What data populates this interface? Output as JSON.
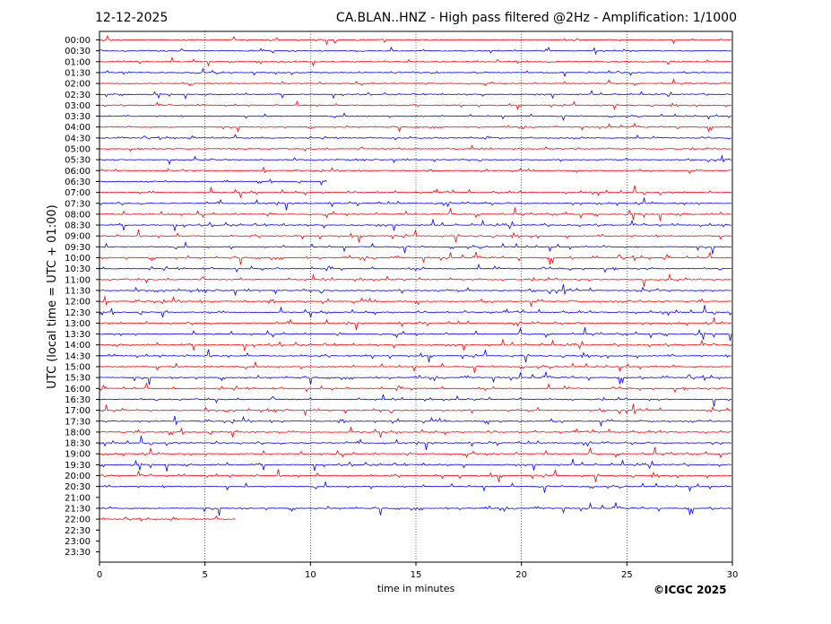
{
  "header": {
    "date": "12-12-2025",
    "title": "CA.BLAN..HNZ - High pass filtered @2Hz - Amplification: 1/1000"
  },
  "footer": {
    "copyright": "©ICGC 2025"
  },
  "colors": {
    "trace_a": "#ff0000",
    "trace_b": "#0000ff",
    "grid": "#000000"
  },
  "chart_data": {
    "type": "line",
    "title": "CA.BLAN..HNZ - High pass filtered @2Hz - Amplification: 1/1000",
    "xlabel": "time in minutes",
    "ylabel": "UTC (local time = UTC + 01:00)",
    "xlim": [
      0,
      30
    ],
    "x_ticks": [
      0,
      5,
      10,
      15,
      20,
      25,
      30
    ],
    "x_tick_labels": [
      "0",
      "5",
      "10",
      "15",
      "20",
      "25",
      "30"
    ],
    "rows": [
      "00:00",
      "00:30",
      "01:00",
      "01:30",
      "02:00",
      "02:30",
      "03:00",
      "03:30",
      "04:00",
      "04:30",
      "05:00",
      "05:30",
      "06:00",
      "06:30",
      "07:00",
      "07:30",
      "08:00",
      "08:30",
      "09:00",
      "09:30",
      "10:00",
      "10:30",
      "11:00",
      "11:30",
      "12:00",
      "12:30",
      "13:00",
      "13:30",
      "14:00",
      "14:30",
      "15:00",
      "15:30",
      "16:00",
      "16:30",
      "17:00",
      "17:30",
      "18:00",
      "18:30",
      "19:00",
      "19:30",
      "20:00",
      "20:30",
      "21:00",
      "21:30",
      "22:00",
      "22:30",
      "23:00",
      "23:30"
    ],
    "row_colors": [
      "red",
      "blue",
      "red",
      "blue",
      "red",
      "blue",
      "red",
      "blue",
      "red",
      "blue",
      "red",
      "blue",
      "red",
      "blue",
      "red",
      "blue",
      "red",
      "blue",
      "red",
      "blue",
      "red",
      "blue",
      "red",
      "blue",
      "red",
      "blue",
      "red",
      "blue",
      "red",
      "blue",
      "red",
      "blue",
      "red",
      "blue",
      "red",
      "blue",
      "red",
      "blue",
      "red",
      "blue",
      "red",
      "blue",
      "red",
      "blue",
      "red",
      "blue",
      "red",
      "blue"
    ],
    "data_end": {
      "06:30": 10.8,
      "21:30": 30,
      "22:00": 6.5
    },
    "grid": true
  }
}
